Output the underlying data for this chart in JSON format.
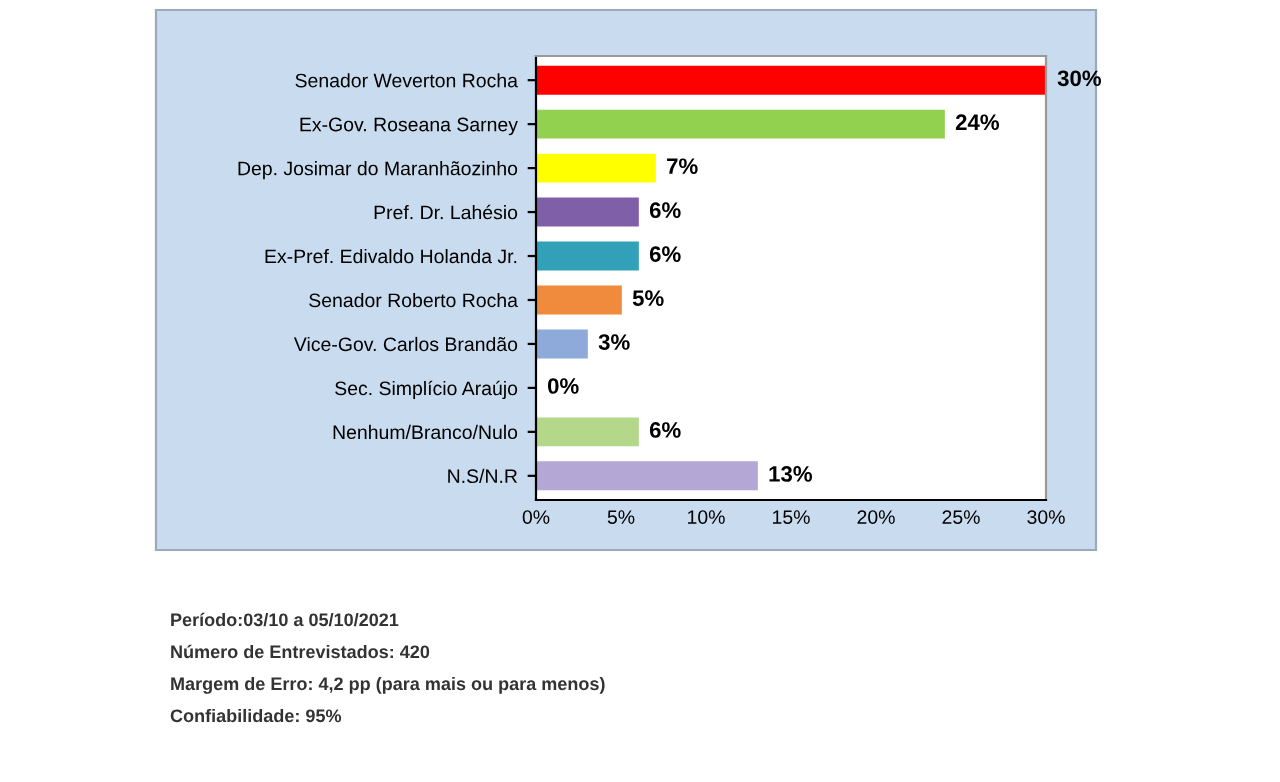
{
  "chart_data": {
    "type": "bar",
    "orientation": "horizontal",
    "categories": [
      "Senador Weverton Rocha",
      "Ex-Gov. Roseana Sarney",
      "Dep. Josimar do Maranhãozinho",
      "Pref. Dr. Lahésio",
      "Ex-Pref. Edivaldo Holanda Jr.",
      "Senador Roberto Rocha",
      "Vice-Gov. Carlos Brandão",
      "Sec. Simplício Araújo",
      "Nenhum/Branco/Nulo",
      "N.S/N.R"
    ],
    "values": [
      30,
      24,
      7,
      6,
      6,
      5,
      3,
      0,
      6,
      13
    ],
    "colors": [
      "#ff0000",
      "#92d050",
      "#ffff00",
      "#7f5fa8",
      "#31a0b8",
      "#f08a3c",
      "#8eaadb",
      "#c0504d",
      "#b3d88a",
      "#b4a7d6"
    ],
    "value_labels": [
      "30%",
      "24%",
      "7%",
      "6%",
      "6%",
      "5%",
      "3%",
      "0%",
      "6%",
      "13%"
    ],
    "xlim": [
      0,
      30
    ],
    "xticks": [
      {
        "value": 0,
        "label": "0%"
      },
      {
        "value": 5,
        "label": "5%"
      },
      {
        "value": 10,
        "label": "10%"
      },
      {
        "value": 15,
        "label": "15%"
      },
      {
        "value": 20,
        "label": "20%"
      },
      {
        "value": 25,
        "label": "25%"
      },
      {
        "value": 30,
        "label": "30%"
      }
    ],
    "grid": false,
    "legend": false,
    "annotations": [
      "Período:03/10 a 05/10/2021",
      "Número de Entrevistados: 420",
      "Margem de Erro: 4,2 pp (para mais ou para menos)",
      "Confiabilidade: 95%"
    ]
  }
}
